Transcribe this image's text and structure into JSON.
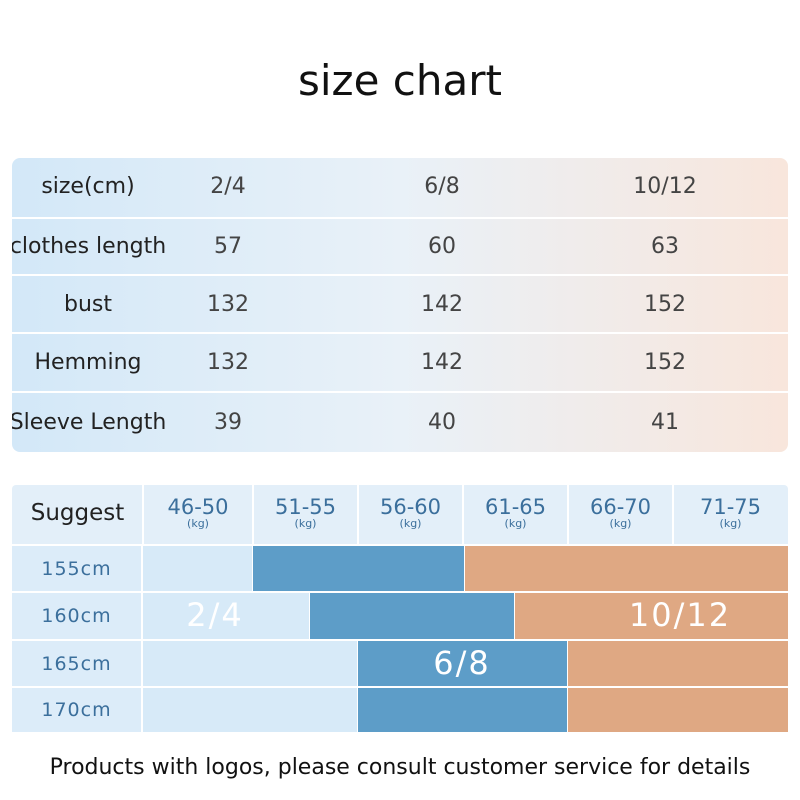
{
  "title": "size chart",
  "size_table": {
    "header": [
      "size(cm)",
      "2/4",
      "6/8",
      "10/12"
    ],
    "rows": [
      [
        "clothes length",
        "57",
        "60",
        "63"
      ],
      [
        "bust",
        "132",
        "142",
        "152"
      ],
      [
        "Hemming",
        "132",
        "142",
        "152"
      ],
      [
        "Sleeve Length",
        "39",
        "40",
        "41"
      ]
    ]
  },
  "suggest_table": {
    "label": "Suggest",
    "weights": [
      {
        "range": "46-50",
        "unit": "(kg)"
      },
      {
        "range": "51-55",
        "unit": "(kg)"
      },
      {
        "range": "56-60",
        "unit": "(kg)"
      },
      {
        "range": "61-65",
        "unit": "(kg)"
      },
      {
        "range": "66-70",
        "unit": "(kg)"
      },
      {
        "range": "71-75",
        "unit": "(kg)"
      }
    ],
    "heights": [
      "155cm",
      "160cm",
      "165cm",
      "170cm"
    ],
    "sizes": [
      "2/4",
      "6/8",
      "10/12"
    ]
  },
  "footer": "Products with logos, please consult customer service for details"
}
